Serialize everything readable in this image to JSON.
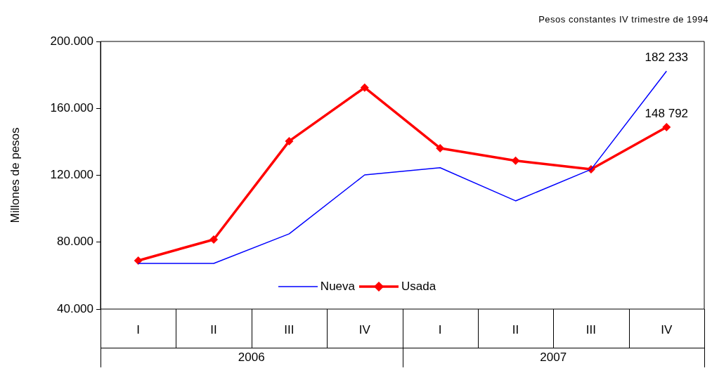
{
  "chart_data": {
    "type": "line",
    "subtitle": "Pesos constantes IV trimestre de 1994",
    "ylabel": "Millones de pesos",
    "categories": [
      "I",
      "II",
      "III",
      "IV",
      "I",
      "II",
      "III",
      "IV"
    ],
    "annotations": [
      "2006",
      "2007"
    ],
    "series": [
      {
        "name": "Nueva",
        "color": "#0000ff",
        "marker": "none",
        "values": [
          67300,
          67300,
          85000,
          120200,
          124500,
          104700,
          123500,
          182233
        ],
        "value_labels": [
          null,
          null,
          null,
          null,
          null,
          null,
          null,
          "182 233"
        ]
      },
      {
        "name": "Usada",
        "color": "#ff0000",
        "marker": "diamond",
        "values": [
          69000,
          81600,
          140400,
          172400,
          136200,
          128700,
          123600,
          148792
        ],
        "value_labels": [
          null,
          null,
          null,
          null,
          null,
          null,
          null,
          "148 792"
        ]
      }
    ],
    "ylim": [
      40000,
      200000
    ],
    "yticks": [
      {
        "value": 40000,
        "label": "40.000"
      },
      {
        "value": 80000,
        "label": "80.000"
      },
      {
        "value": 120000,
        "label": "120.000"
      },
      {
        "value": 160000,
        "label": "160.000"
      },
      {
        "value": 200000,
        "label": "200.000"
      }
    ],
    "grid": false,
    "legend": "bottom"
  }
}
